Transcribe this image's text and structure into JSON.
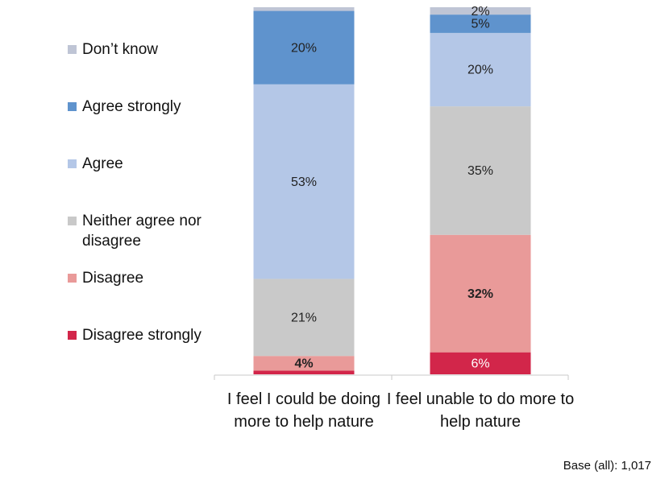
{
  "chart_data": {
    "type": "stacked-bar",
    "categories": [
      "I feel I could be doing more to help nature",
      "I feel unable to do more to help nature"
    ],
    "series": [
      {
        "name": "Disagree strongly",
        "color": "#d2264a",
        "values": [
          1,
          6
        ],
        "value_labels": [
          null,
          "6%"
        ]
      },
      {
        "name": "Disagree",
        "color": "#e99a99",
        "values": [
          4,
          32
        ],
        "value_labels": [
          "4%",
          "32%"
        ]
      },
      {
        "name": "Neither agree nor disagree",
        "color": "#c9c9c9",
        "values": [
          21,
          35
        ],
        "value_labels": [
          "21%",
          "35%"
        ]
      },
      {
        "name": "Agree",
        "color": "#b4c7e7",
        "values": [
          53,
          20
        ],
        "value_labels": [
          "53%",
          "20%"
        ]
      },
      {
        "name": "Agree strongly",
        "color": "#5f93cd",
        "values": [
          20,
          5
        ],
        "value_labels": [
          "20%",
          "5%"
        ]
      },
      {
        "name": "Don’t know",
        "color": "#bfc5d5",
        "values": [
          1,
          2
        ],
        "value_labels": [
          null,
          "2%"
        ]
      }
    ],
    "note": "Base (all): 1,017"
  }
}
